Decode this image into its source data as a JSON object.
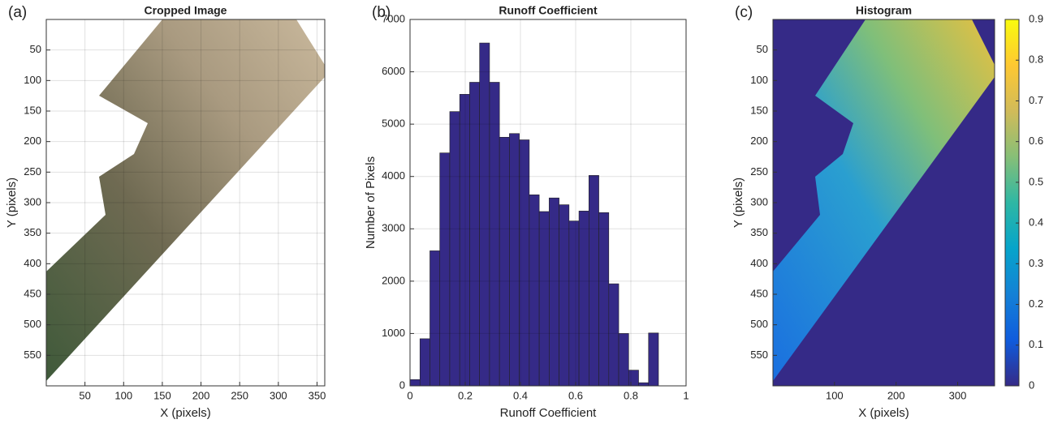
{
  "chart_data": [
    {
      "type": "image",
      "panel_label": "(a)",
      "title": "Cropped Image",
      "xlabel": "X (pixels)",
      "ylabel": "Y (pixels)",
      "xlim": [
        0,
        360
      ],
      "ylim": [
        0,
        600
      ],
      "y_reversed": true,
      "grid": true,
      "xticks": [
        50,
        100,
        150,
        200,
        250,
        300,
        350
      ],
      "yticks": [
        50,
        100,
        150,
        200,
        250,
        300,
        350,
        400,
        450,
        500,
        550
      ]
    },
    {
      "type": "histogram",
      "panel_label": "(b)",
      "title": "Runoff Coefficient",
      "xlabel": "Runoff Coefficient",
      "ylabel": "Number of Pixels",
      "color": "#352a87",
      "grid": true,
      "bins": [
        0,
        0.036,
        0.072,
        0.108,
        0.144,
        0.18,
        0.216,
        0.252,
        0.288,
        0.324,
        0.36,
        0.396,
        0.432,
        0.468,
        0.504,
        0.54,
        0.576,
        0.612,
        0.648,
        0.684,
        0.72,
        0.756,
        0.792,
        0.828,
        0.864,
        0.9
      ],
      "values": [
        120,
        900,
        2580,
        4450,
        5240,
        5570,
        5800,
        6550,
        5800,
        4750,
        4820,
        4700,
        3650,
        3330,
        3590,
        3460,
        3150,
        3340,
        4020,
        3310,
        1950,
        1000,
        300,
        60,
        1010
      ],
      "xlim": [
        0,
        1
      ],
      "ylim": [
        0,
        7000
      ],
      "xticks": [
        0,
        0.2,
        0.4,
        0.6,
        0.8,
        1
      ],
      "yticks": [
        0,
        1000,
        2000,
        3000,
        4000,
        5000,
        6000,
        7000
      ]
    },
    {
      "type": "heatmap",
      "panel_label": "(c)",
      "title": "Histogram",
      "xlabel": "X (pixels)",
      "ylabel": "Y (pixels)",
      "xlim": [
        0,
        360
      ],
      "ylim": [
        0,
        600
      ],
      "y_reversed": true,
      "grid": false,
      "xticks": [
        100,
        200,
        300
      ],
      "yticks": [
        50,
        100,
        150,
        200,
        250,
        300,
        350,
        400,
        450,
        500,
        550
      ],
      "colorbar": {
        "clim": [
          0,
          0.9
        ],
        "ticks": [
          0,
          0.1,
          0.2,
          0.3,
          0.4,
          0.5,
          0.6,
          0.7,
          0.8,
          0.9
        ],
        "colormap": [
          "#352a87",
          "#0f5cdd",
          "#1481d6",
          "#06a4ca",
          "#2eb7a4",
          "#87bf77",
          "#d1bb59",
          "#fec832",
          "#f9fb0e"
        ]
      }
    }
  ]
}
